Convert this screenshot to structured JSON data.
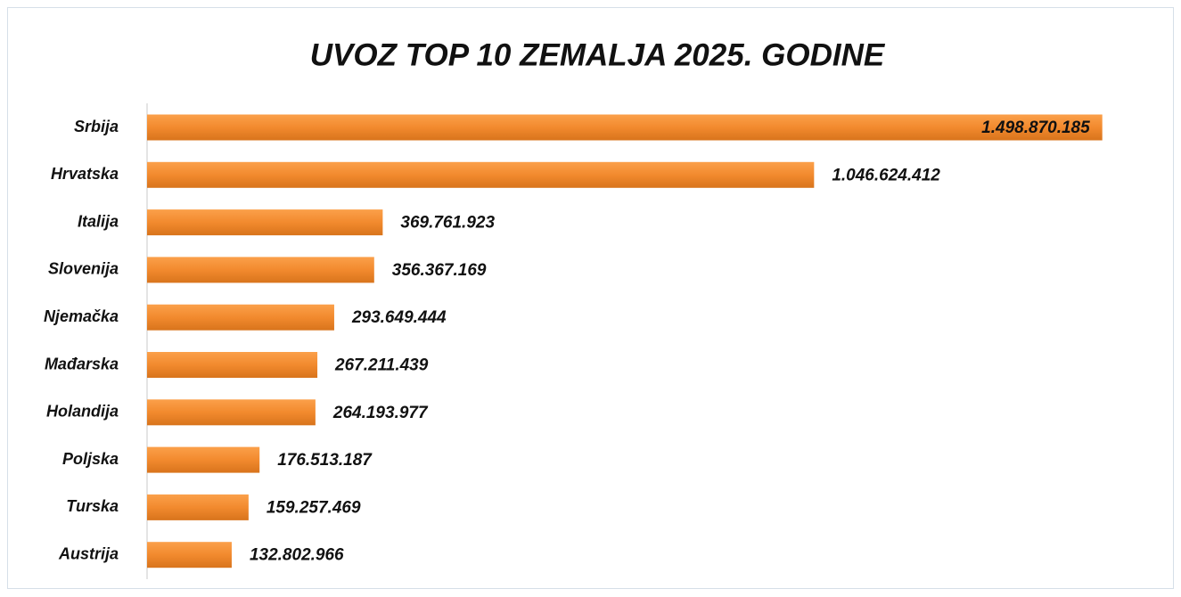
{
  "chart_data": {
    "type": "bar",
    "orientation": "horizontal",
    "title": "UVOZ TOP 10 ZEMALJA 2025. GODINE",
    "categories": [
      "Srbija",
      "Hrvatska",
      "Italija",
      "Slovenija",
      "Njemačka",
      "Mađarska",
      "Holandija",
      "Poljska",
      "Turska",
      "Austrija"
    ],
    "values": [
      1498870185,
      1046624412,
      369761923,
      356367169,
      293649444,
      267211439,
      264193977,
      176513187,
      159257469,
      132802966
    ],
    "value_labels": [
      "1.498.870.185",
      "1.046.624.412",
      "369.761.923",
      "356.367.169",
      "293.649.444",
      "267.211.439",
      "264.193.977",
      "176.513.187",
      "159.257.469",
      "132.802.966"
    ],
    "color": "#f28a2e",
    "xlim": [
      0,
      1600000000
    ]
  }
}
